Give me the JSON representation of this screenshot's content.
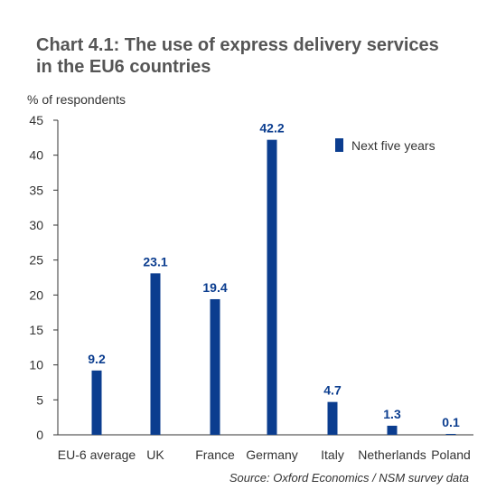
{
  "chart_data": {
    "type": "bar",
    "title_line1": "Chart 4.1: The use of express delivery services",
    "title_line2": "in the EU6 countries",
    "ylabel": "% of respondents",
    "categories": [
      "EU-6 average",
      "UK",
      "France",
      "Germany",
      "Italy",
      "Netherlands",
      "Poland"
    ],
    "series": [
      {
        "name": "Next five years",
        "values": [
          9.2,
          23.1,
          19.4,
          42.2,
          4.7,
          1.3,
          0.1
        ],
        "color": "#0b3d8f"
      }
    ],
    "value_labels": [
      "9.2",
      "23.1",
      "19.4",
      "42.2",
      "4.7",
      "1.3",
      "0.1"
    ],
    "ylim": [
      0,
      45
    ],
    "yticks": [
      0,
      5,
      10,
      15,
      20,
      25,
      30,
      35,
      40,
      45
    ],
    "grid": false,
    "legend_position": "top-right",
    "source": "Source: Oxford Economics / NSM survey data"
  }
}
